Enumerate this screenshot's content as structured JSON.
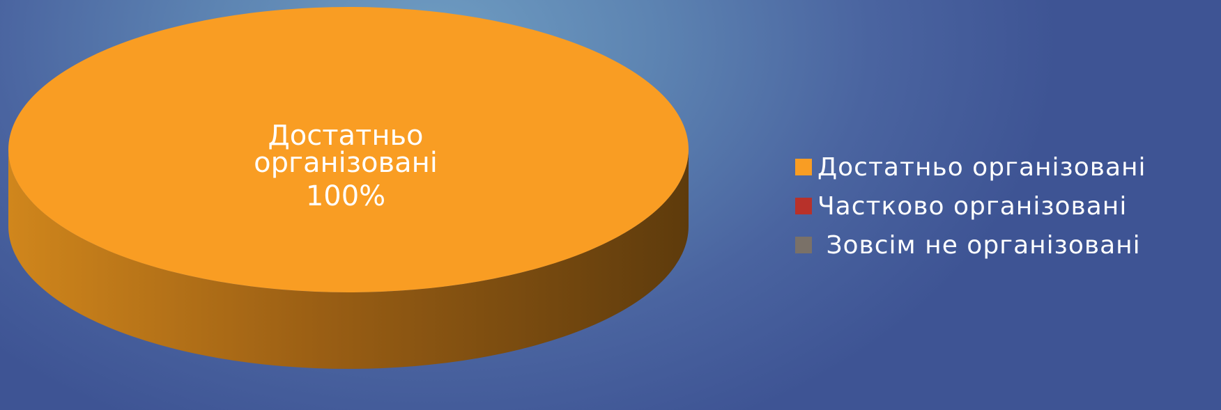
{
  "chart_data": {
    "type": "pie",
    "style": "3d",
    "slices": [
      {
        "label": "Достатньо організовані",
        "value": 100,
        "color": "#f99d23"
      },
      {
        "label": "Частково організовані",
        "value": 0,
        "color": "#b8312a"
      },
      {
        "label": "Зовсім не організовані",
        "value": 0,
        "color": "#7a7168"
      }
    ],
    "data_label": {
      "line1": "Достатньо",
      "line2": "організовані",
      "line3": "100%"
    },
    "legend_position": "right"
  },
  "legend": [
    {
      "label": "Достатньо організовані",
      "color": "#f99d23"
    },
    {
      "label": "Частково організовані",
      "color": "#b8312a"
    },
    {
      "label": " Зовсім не організовані",
      "color": "#7a7168"
    }
  ]
}
